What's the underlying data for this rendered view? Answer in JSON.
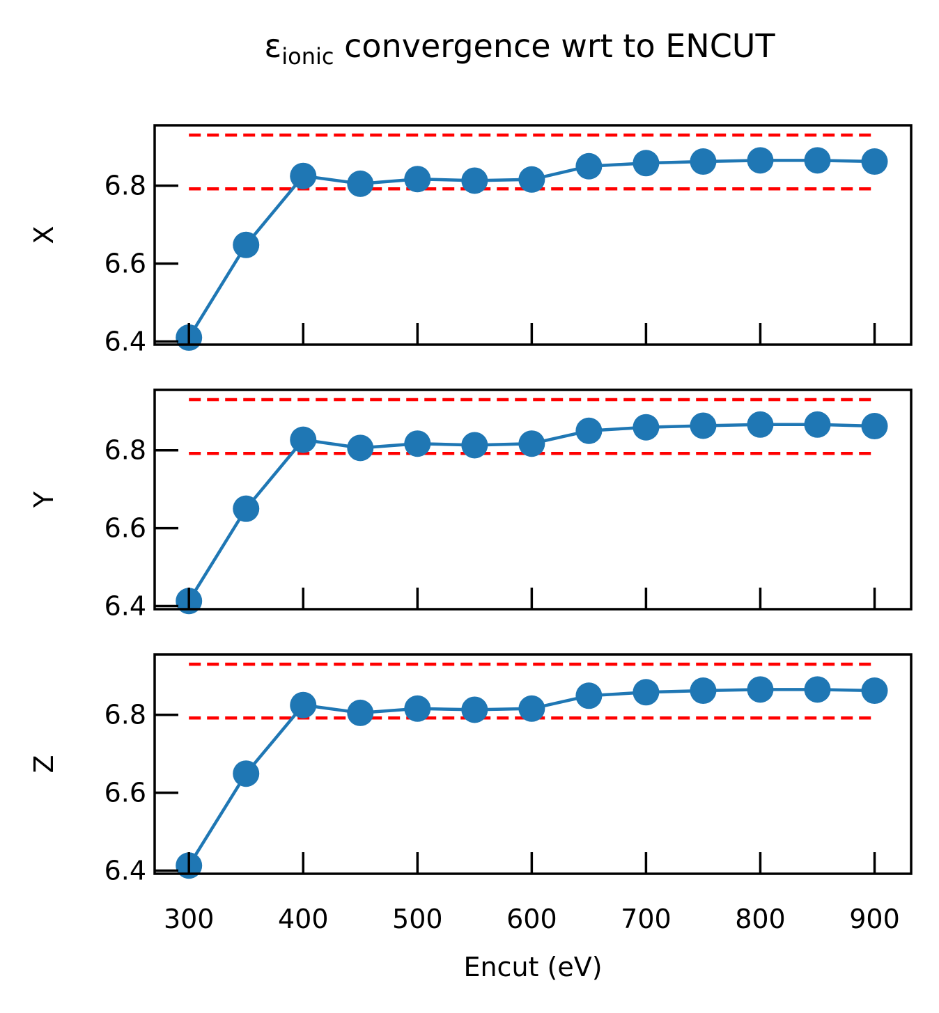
{
  "title": {
    "symbol": "ε",
    "subscript": "ionic",
    "rest": " convergence wrt to ENCUT"
  },
  "colors": {
    "series": "#1f77b4",
    "threshold": "#ff0000",
    "axes": "#000000"
  },
  "chart_data": {
    "type": "line",
    "xlabel": "Encut (eV)",
    "xlim": [
      270,
      932
    ],
    "xticks": [
      300,
      400,
      500,
      600,
      700,
      800,
      900
    ],
    "xtick_labels": [
      "300",
      "400",
      "500",
      "600",
      "700",
      "800",
      "900"
    ],
    "ylim": [
      6.392,
      6.955
    ],
    "yticks": [
      6.4,
      6.6,
      6.8
    ],
    "ytick_labels": [
      "6.4",
      "6.6",
      "6.8"
    ],
    "grid": false,
    "x": [
      300,
      350,
      400,
      450,
      500,
      550,
      600,
      650,
      700,
      750,
      800,
      850,
      900
    ],
    "panels": [
      {
        "ylabel": "X",
        "values": [
          6.41,
          6.648,
          6.825,
          6.805,
          6.817,
          6.813,
          6.816,
          6.85,
          6.858,
          6.862,
          6.865,
          6.865,
          6.862
        ],
        "threshold_lines": [
          6.792,
          6.93
        ]
      },
      {
        "ylabel": "Y",
        "values": [
          6.413,
          6.65,
          6.827,
          6.806,
          6.817,
          6.813,
          6.817,
          6.85,
          6.859,
          6.863,
          6.866,
          6.866,
          6.862
        ],
        "threshold_lines": [
          6.792,
          6.93
        ]
      },
      {
        "ylabel": "Z",
        "values": [
          6.413,
          6.649,
          6.825,
          6.805,
          6.816,
          6.813,
          6.816,
          6.849,
          6.858,
          6.862,
          6.865,
          6.865,
          6.862
        ],
        "threshold_lines": [
          6.792,
          6.93
        ]
      }
    ]
  }
}
